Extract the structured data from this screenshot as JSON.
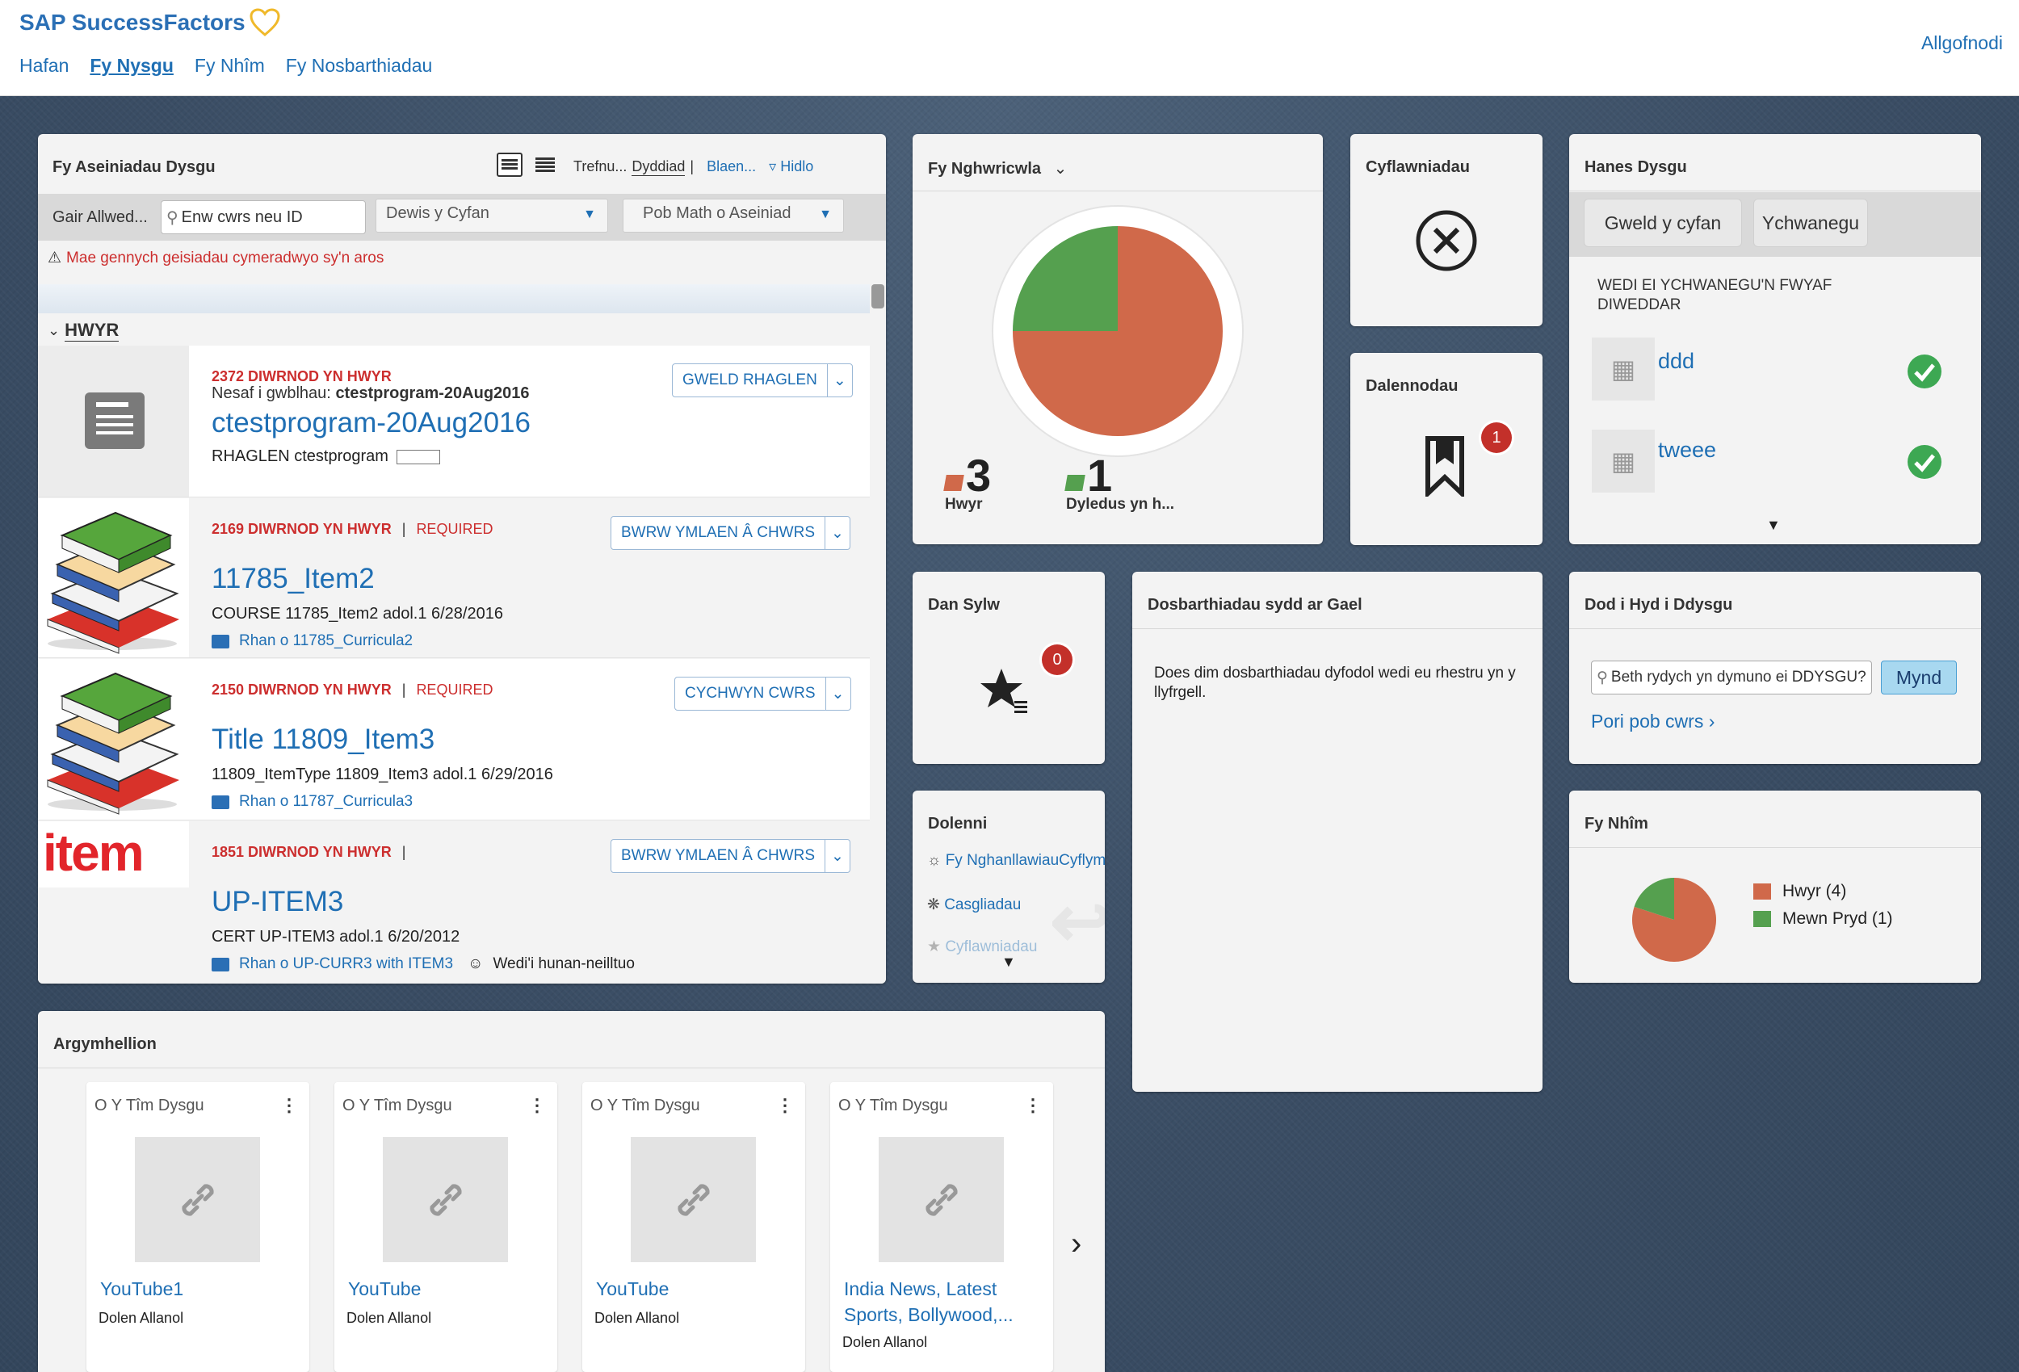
{
  "header": {
    "logo": "SAP SuccessFactors",
    "nav": [
      "Hafan",
      "Fy Nysgu",
      "Fy Nhîm",
      "Fy Nosbarthiadau"
    ],
    "logout": "Allgofnodi"
  },
  "assignments": {
    "title": "Fy Aseiniadau Dysgu",
    "sort_label": "Trefnu...",
    "sort_value": "Dyddiad",
    "sort_next": "Blaen...",
    "filter": "Hidlo",
    "keyword_label": "Gair Allwed...",
    "keyword_placeholder": "Enw cwrs neu ID",
    "select_all": "Dewis y Cyfan",
    "select_type": "Pob Math o Aseiniad",
    "warning": "Mae gennych geisiadau cymeradwyo sy'n aros",
    "group": "HWYR",
    "items": [
      {
        "overdue": "2372 DIWRNOD YN HWYR",
        "next_label": "Nesaf i gwblhau:",
        "next_value": "ctestprogram-20Aug2016",
        "title": "ctestprogram-20Aug2016",
        "meta": "RHAGLEN ctestprogram",
        "button": "GWELD RHAGLEN"
      },
      {
        "overdue": "2169 DIWRNOD YN HWYR",
        "required": "REQUIRED",
        "title": "11785_Item2",
        "meta": "COURSE 11785_Item2 adol.1 6/28/2016",
        "folder": "Rhan o 11785_Curricula2",
        "button": "BWRW YMLAEN Â CHWRS"
      },
      {
        "overdue": "2150 DIWRNOD YN HWYR",
        "required": "REQUIRED",
        "title": "Title 11809_Item3",
        "meta": "11809_ItemType 11809_Item3 adol.1 6/29/2016",
        "folder": "Rhan o 11787_Curricula3",
        "button": "CYCHWYN CWRS"
      },
      {
        "overdue": "1851 DIWRNOD YN HWYR",
        "thumb_text": "item",
        "title": "UP-ITEM3",
        "meta": "CERT UP-ITEM3 adol.1 6/20/2012",
        "folder": "Rhan o UP-CURR3 with ITEM3",
        "assigned": "Wedi'i hunan-neilltuo",
        "button": "BWRW YMLAEN Â CHWRS"
      }
    ]
  },
  "curriculum": {
    "title": "Fy Nghwricwla",
    "overdue_count": "3",
    "overdue_label": "Hwyr",
    "due_count": "1",
    "due_label": "Dyledus yn h...",
    "colors": {
      "overdue": "#d0694a",
      "due": "#55a04f"
    }
  },
  "achievements": {
    "title": "Cyflawniadau"
  },
  "bookmarks": {
    "title": "Dalennodau",
    "count": "1"
  },
  "history": {
    "title": "Hanes Dysgu",
    "btn_view": "Gweld y cyfan",
    "btn_add": "Ychwanegu",
    "heading": "WEDI EI YCHWANEGU'N FWYAF DIWEDDAR",
    "items": [
      "ddd",
      "tweee"
    ]
  },
  "spotlight": {
    "title": "Dan Sylw",
    "count": "0"
  },
  "classes": {
    "title": "Dosbarthiadau sydd ar Gael",
    "message": "Does dim dosbarthiadau dyfodol wedi eu rhestru yn y llyfrgell."
  },
  "findlearning": {
    "title": "Dod i Hyd i Ddysgu",
    "placeholder": "Beth rydych yn dymuno ei DDYSGU?",
    "go": "Mynd",
    "browse": "Pori pob cwrs"
  },
  "links": {
    "title": "Dolenni",
    "items": [
      "Fy NghanllawiauCyflymu",
      "Casgliadau",
      "Cyflawniadau"
    ]
  },
  "team": {
    "title": "Fy Nhîm",
    "legend": [
      "Hwyr (4)",
      "Mewn Pryd (1)"
    ],
    "values": [
      4,
      1
    ],
    "colors": [
      "#d0694a",
      "#55a04f"
    ]
  },
  "recommendations": {
    "title": "Argymhellion",
    "cards": [
      {
        "source": "O Y Tîm Dysgu",
        "title": "YouTube1",
        "sub": "Dolen Allanol"
      },
      {
        "source": "O Y Tîm Dysgu",
        "title": "YouTube",
        "sub": "Dolen Allanol"
      },
      {
        "source": "O Y Tîm Dysgu",
        "title": "YouTube",
        "sub": "Dolen Allanol"
      },
      {
        "source": "O Y Tîm Dysgu",
        "title": "India News, Latest Sports, Bollywood,...",
        "sub": "Dolen Allanol"
      }
    ]
  }
}
